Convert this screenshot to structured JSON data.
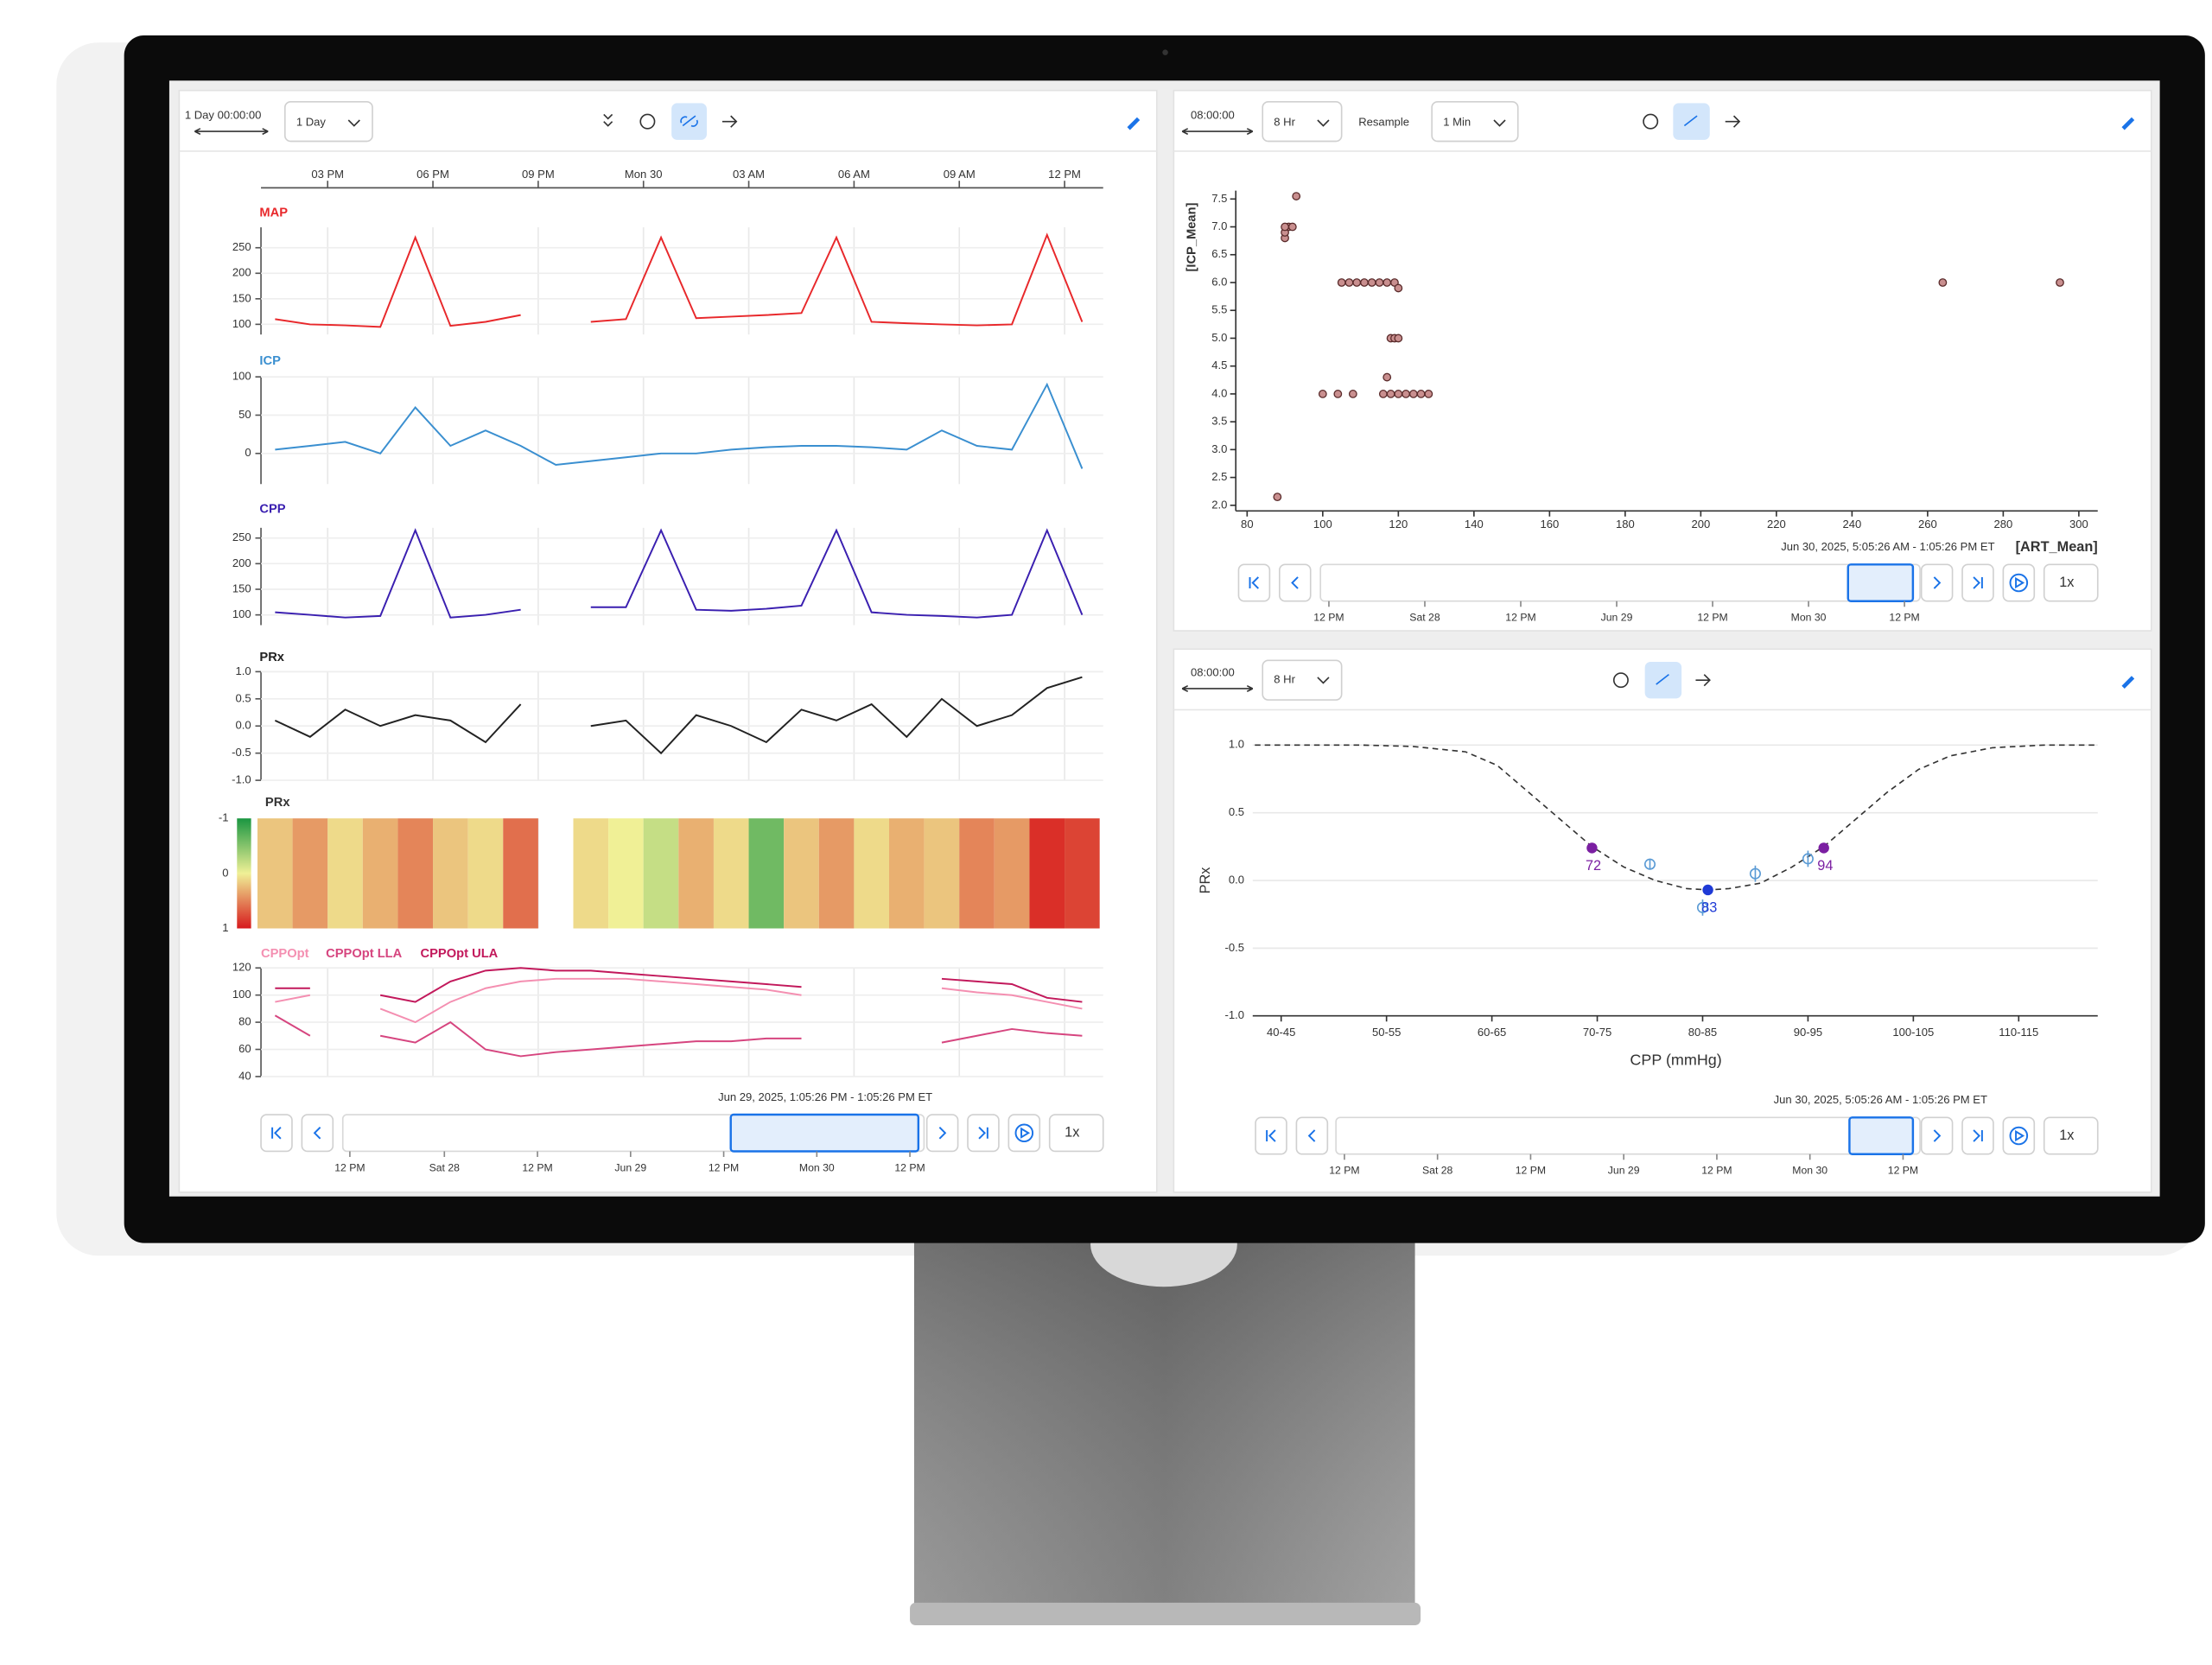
{
  "left_panel": {
    "window_label": "1 Day 00:00:00",
    "range": "1 Day",
    "time_range": "Jun 29, 2025, 1:05:26 PM - 1:05:26 PM ET",
    "navigator": [
      "12 PM",
      "Sat 28",
      "12 PM",
      "Jun 29",
      "12 PM",
      "Mon 30",
      "12 PM"
    ],
    "speed": "1x"
  },
  "scatter_panel": {
    "window_label": "08:00:00",
    "range": "8 Hr",
    "resample_label": "Resample",
    "resample": "1 Min",
    "navigator": [
      "12 PM",
      "Sat 28",
      "12 PM",
      "Jun 29",
      "12 PM",
      "Mon 30",
      "12 PM"
    ],
    "speed": "1x"
  },
  "prx_panel": {
    "window_label": "08:00:00",
    "range": "8 Hr",
    "navigator": [
      "12 PM",
      "Sat 28",
      "12 PM",
      "Jun 29",
      "12 PM",
      "Mon 30",
      "12 PM"
    ],
    "speed": "1x"
  },
  "time_axis": {
    "xlim": [
      13.1,
      37.1
    ],
    "xticks": [
      {
        "value": 15,
        "label": "03 PM"
      },
      {
        "value": 18,
        "label": "06 PM"
      },
      {
        "value": 21,
        "label": "09 PM"
      },
      {
        "value": 24,
        "label": "Mon 30"
      },
      {
        "value": 27,
        "label": "03 AM"
      },
      {
        "value": 30,
        "label": "06 AM"
      },
      {
        "value": 33,
        "label": "09 AM"
      },
      {
        "value": 36,
        "label": "12 PM"
      }
    ]
  },
  "chart_data": [
    {
      "type": "line",
      "x": [
        13.5,
        14.5,
        15.5,
        16.5,
        17.5,
        18.5,
        19.5,
        20.5,
        21.5,
        22.5,
        23.5,
        24.5,
        25.5,
        26.5,
        27.5,
        28.5,
        29.5,
        30.5,
        31.5,
        32.5,
        33.5,
        34.5,
        35.5,
        36.5
      ],
      "series": [
        {
          "name": "MAP",
          "color": "#e8282b",
          "values": [
            110,
            100,
            98,
            95,
            270,
            97,
            105,
            118,
            null,
            105,
            110,
            270,
            112,
            115,
            118,
            122,
            270,
            105,
            102,
            100,
            98,
            100,
            275,
            105
          ]
        }
      ],
      "ylim": [
        80,
        290
      ],
      "yticks": [
        100,
        150,
        200,
        250
      ]
    },
    {
      "type": "line",
      "x": [
        13.5,
        14.5,
        15.5,
        16.5,
        17.5,
        18.5,
        19.5,
        20.5,
        21.5,
        22.5,
        23.5,
        24.5,
        25.5,
        26.5,
        27.5,
        28.5,
        29.5,
        30.5,
        31.5,
        32.5,
        33.5,
        34.5,
        35.5,
        36.5
      ],
      "series": [
        {
          "name": "ICP",
          "color": "#3a8fd0",
          "values": [
            5,
            10,
            15,
            0,
            60,
            10,
            30,
            10,
            -15,
            -10,
            -5,
            0,
            0,
            5,
            8,
            10,
            10,
            8,
            5,
            30,
            10,
            5,
            90,
            -20
          ]
        }
      ],
      "ylim": [
        -40,
        100
      ],
      "yticks": [
        0,
        50,
        100
      ]
    },
    {
      "type": "line",
      "x": [
        13.5,
        14.5,
        15.5,
        16.5,
        17.5,
        18.5,
        19.5,
        20.5,
        21.5,
        22.5,
        23.5,
        24.5,
        25.5,
        26.5,
        27.5,
        28.5,
        29.5,
        30.5,
        31.5,
        32.5,
        33.5,
        34.5,
        35.5,
        36.5
      ],
      "series": [
        {
          "name": "CPP",
          "color": "#3a1fb0",
          "values": [
            105,
            100,
            95,
            98,
            265,
            95,
            100,
            110,
            null,
            115,
            115,
            265,
            110,
            108,
            112,
            118,
            265,
            105,
            100,
            98,
            95,
            100,
            265,
            100
          ]
        }
      ],
      "ylim": [
        80,
        270
      ],
      "yticks": [
        100,
        150,
        200,
        250
      ]
    },
    {
      "type": "line",
      "x": [
        13.5,
        14.5,
        15.5,
        16.5,
        17.5,
        18.5,
        19.5,
        20.5,
        21.5,
        22.5,
        23.5,
        24.5,
        25.5,
        26.5,
        27.5,
        28.5,
        29.5,
        30.5,
        31.5,
        32.5,
        33.5,
        34.5,
        35.5,
        36.5
      ],
      "series": [
        {
          "name": "PRx",
          "color": "#222222",
          "values": [
            0.1,
            -0.2,
            0.3,
            0.0,
            0.2,
            0.1,
            -0.3,
            0.4,
            null,
            0.0,
            0.1,
            -0.5,
            0.2,
            0.0,
            -0.3,
            0.3,
            0.1,
            0.4,
            -0.2,
            0.5,
            0.0,
            0.2,
            0.7,
            0.9
          ]
        }
      ],
      "ylim": [
        -1,
        1
      ],
      "yticks": [
        {
          "value": -1,
          "label": "-1.0"
        },
        -0.5,
        {
          "value": 0,
          "label": "0.0"
        },
        0.5,
        {
          "value": 1,
          "label": "1.0"
        }
      ]
    },
    {
      "type": "heatmap",
      "title": "PRx",
      "x": [
        13.5,
        14.5,
        15.5,
        16.5,
        17.5,
        18.5,
        19.5,
        20.5,
        21.5,
        22.5,
        23.5,
        24.5,
        25.5,
        26.5,
        27.5,
        28.5,
        29.5,
        30.5,
        31.5,
        32.5,
        33.5,
        34.5,
        35.5,
        36.5
      ],
      "values": [
        0.2,
        0.4,
        0.1,
        0.3,
        0.5,
        0.2,
        0.1,
        0.6,
        null,
        0.1,
        0.0,
        -0.2,
        0.3,
        0.1,
        -0.6,
        0.2,
        0.4,
        0.1,
        0.3,
        0.2,
        0.5,
        0.4,
        0.9,
        0.8
      ],
      "clim": [
        -1,
        1
      ],
      "cticks": [
        -1,
        0,
        1
      ]
    },
    {
      "type": "line",
      "x": [
        13.5,
        14.5,
        15.5,
        16.5,
        17.5,
        18.5,
        19.5,
        20.5,
        21.5,
        22.5,
        23.5,
        24.5,
        25.5,
        26.5,
        27.5,
        28.5,
        29.5,
        30.5,
        31.5,
        32.5,
        33.5,
        34.5,
        35.5,
        36.5
      ],
      "series": [
        {
          "name": "CPPOpt",
          "color": "#f48fb1",
          "values": [
            95,
            100,
            null,
            90,
            80,
            95,
            105,
            110,
            112,
            112,
            112,
            110,
            108,
            106,
            104,
            100,
            null,
            null,
            null,
            105,
            102,
            100,
            95,
            90
          ]
        },
        {
          "name": "CPPOpt LLA",
          "color": "#d6457f",
          "values": [
            85,
            70,
            null,
            70,
            65,
            80,
            60,
            55,
            58,
            60,
            62,
            64,
            66,
            66,
            68,
            68,
            null,
            null,
            null,
            65,
            70,
            75,
            72,
            70
          ]
        },
        {
          "name": "CPPOpt ULA",
          "color": "#c2185b",
          "values": [
            105,
            105,
            null,
            100,
            95,
            110,
            118,
            120,
            118,
            118,
            116,
            114,
            112,
            110,
            108,
            106,
            null,
            null,
            null,
            112,
            110,
            108,
            98,
            95
          ]
        }
      ],
      "ylim": [
        40,
        120
      ],
      "yticks": [
        40,
        60,
        80,
        100,
        120
      ]
    },
    {
      "type": "scatter",
      "subtitle": "Jun 30, 2025, 5:05:26 AM - 1:05:26 PM ET",
      "xlabel": "[ART_Mean]",
      "ylabel": "[ICP_Mean]",
      "color": "#c98f8f",
      "x": [
        88,
        90,
        90,
        91,
        92,
        90,
        93,
        100,
        104,
        108,
        105,
        107,
        109,
        111,
        113,
        115,
        117,
        119,
        120,
        118,
        119,
        120,
        117,
        116,
        118,
        120,
        122,
        124,
        126,
        128,
        264,
        295
      ],
      "values": [
        2.15,
        6.8,
        6.9,
        7.0,
        7.0,
        7.0,
        7.55,
        4.0,
        4.0,
        4.0,
        6.0,
        6.0,
        6.0,
        6.0,
        6.0,
        6.0,
        6.0,
        6.0,
        5.9,
        5.0,
        5.0,
        5.0,
        4.3,
        4.0,
        4.0,
        4.0,
        4.0,
        4.0,
        4.0,
        4.0,
        6.0,
        6.0
      ],
      "xlim": [
        77,
        305
      ],
      "ylim": [
        1.9,
        7.65
      ],
      "xticks": [
        80,
        100,
        120,
        140,
        160,
        180,
        200,
        220,
        240,
        260,
        280,
        300
      ],
      "yticks": [
        {
          "value": 2,
          "label": "2.0"
        },
        2.5,
        {
          "value": 3,
          "label": "3.0"
        },
        3.5,
        {
          "value": 4,
          "label": "4.0"
        },
        4.5,
        {
          "value": 5,
          "label": "5.0"
        },
        5.5,
        {
          "value": 6,
          "label": "6.0"
        },
        6.5,
        {
          "value": 7,
          "label": "7.0"
        },
        7.5
      ]
    },
    {
      "type": "line",
      "subtitle": "Jun 30, 2025, 5:05:26 AM - 1:05:26 PM ET",
      "xlabel": "CPP (mmHg)",
      "ylabel": "PRx",
      "xlim": [
        39.8,
        120
      ],
      "ylim": [
        -1,
        1
      ],
      "xticks": [
        {
          "value": 42.5,
          "label": "40-45"
        },
        {
          "value": 52.5,
          "label": "50-55"
        },
        {
          "value": 62.5,
          "label": "60-65"
        },
        {
          "value": 72.5,
          "label": "70-75"
        },
        {
          "value": 82.5,
          "label": "80-85"
        },
        {
          "value": 92.5,
          "label": "90-95"
        },
        {
          "value": 102.5,
          "label": "100-105"
        },
        {
          "value": 112.5,
          "label": "110-115"
        }
      ],
      "yticks": [
        {
          "value": -1,
          "label": "-1.0"
        },
        -0.5,
        {
          "value": 0,
          "label": "0.0"
        },
        0.5,
        {
          "value": 1,
          "label": "1.0"
        }
      ],
      "grid": true,
      "series": [
        {
          "color": "#333333",
          "dash": true,
          "x": [
            40,
            50,
            55,
            60,
            63,
            66,
            69,
            72,
            75,
            78,
            81,
            83,
            85,
            88,
            91,
            94,
            97,
            100,
            103,
            106,
            110,
            115,
            120
          ],
          "values": [
            1,
            1,
            0.99,
            0.95,
            0.85,
            0.65,
            0.45,
            0.25,
            0.1,
            0.0,
            -0.06,
            -0.07,
            -0.06,
            -0.02,
            0.1,
            0.25,
            0.45,
            0.65,
            0.82,
            0.92,
            0.98,
            1,
            1
          ]
        },
        {
          "color": "#5b9bd5",
          "x": [
            77.5,
            82.5,
            87.5,
            92.5
          ],
          "values": [
            0.12,
            -0.2,
            0.05,
            0.16
          ],
          "errors": [
            0.04,
            0.06,
            0.06,
            0.06
          ]
        },
        {
          "color": "#7b1fa2",
          "x": [
            72,
            83,
            94
          ],
          "values": [
            0.24,
            -0.07,
            0.24
          ],
          "point_colors": [
            "#7b1fa2",
            "#1e3ad6",
            "#7b1fa2"
          ]
        }
      ]
    }
  ]
}
